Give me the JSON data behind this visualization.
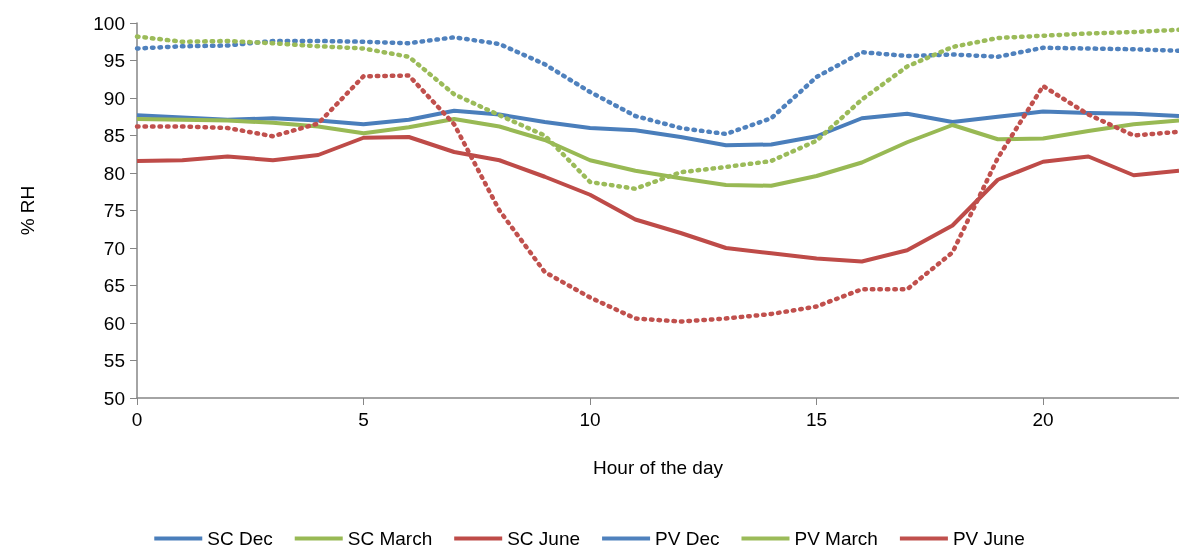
{
  "chart_data": {
    "type": "line",
    "xlabel": "Hour of the day",
    "ylabel": "% RH",
    "x": [
      0,
      1,
      2,
      3,
      4,
      5,
      6,
      7,
      8,
      9,
      10,
      11,
      12,
      13,
      14,
      15,
      16,
      17,
      18,
      19,
      20,
      21,
      22,
      23
    ],
    "xlim": [
      0,
      23
    ],
    "xticks": [
      0,
      5,
      10,
      15,
      20
    ],
    "ylim": [
      50,
      100
    ],
    "yticks": [
      50,
      55,
      60,
      65,
      70,
      75,
      80,
      85,
      90,
      95,
      100
    ],
    "grid": false,
    "legend": "bottom",
    "marker": "none",
    "series": [
      {
        "name": "SC Dec",
        "color": "#4a7ebb",
        "line_style": "solid",
        "values": [
          87.7,
          87.4,
          87.1,
          87.3,
          87.0,
          86.5,
          87.1,
          88.3,
          87.8,
          86.8,
          86.0,
          85.7,
          84.8,
          83.7,
          83.8,
          84.9,
          87.3,
          87.9,
          86.8,
          87.5,
          88.2,
          88.0,
          87.9,
          87.6
        ]
      },
      {
        "name": "SC March",
        "color": "#98b954",
        "line_style": "solid",
        "values": [
          87.2,
          87.1,
          87.0,
          86.7,
          86.2,
          85.3,
          86.1,
          87.2,
          86.2,
          84.4,
          81.7,
          80.3,
          79.3,
          78.4,
          78.3,
          79.6,
          81.4,
          84.1,
          86.4,
          84.5,
          84.6,
          85.6,
          86.5,
          87.0
        ]
      },
      {
        "name": "SC June",
        "color": "#be4b48",
        "line_style": "solid",
        "values": [
          81.6,
          81.7,
          82.2,
          81.7,
          82.4,
          84.7,
          84.8,
          82.8,
          81.7,
          79.5,
          77.1,
          73.8,
          72.0,
          70.0,
          69.3,
          68.6,
          68.2,
          69.7,
          73.0,
          79.1,
          81.5,
          82.2,
          79.7,
          80.3
        ]
      },
      {
        "name": "PV Dec",
        "color": "#4f81bd",
        "line_style": "dotted",
        "values": [
          96.6,
          96.9,
          97.0,
          97.6,
          97.6,
          97.5,
          97.3,
          98.1,
          97.2,
          94.5,
          90.8,
          87.6,
          86.0,
          85.2,
          87.3,
          92.8,
          96.1,
          95.6,
          95.8,
          95.5,
          96.7,
          96.6,
          96.5,
          96.3
        ]
      },
      {
        "name": "PV March",
        "color": "#9bbb59",
        "line_style": "dotted",
        "values": [
          98.2,
          97.5,
          97.6,
          97.3,
          96.9,
          96.6,
          95.5,
          90.5,
          87.7,
          85.0,
          78.8,
          77.9,
          80.1,
          80.8,
          81.6,
          84.3,
          89.8,
          94.2,
          96.8,
          98.0,
          98.3,
          98.6,
          98.8,
          99.1
        ]
      },
      {
        "name": "PV June",
        "color": "#c0504d",
        "line_style": "dotted",
        "values": [
          86.2,
          86.2,
          86.0,
          84.9,
          86.6,
          92.9,
          93.0,
          86.5,
          75.0,
          66.8,
          63.4,
          60.6,
          60.2,
          60.6,
          61.2,
          62.2,
          64.5,
          64.5,
          69.4,
          82.0,
          91.6,
          87.8,
          85.0,
          85.5
        ]
      }
    ]
  }
}
